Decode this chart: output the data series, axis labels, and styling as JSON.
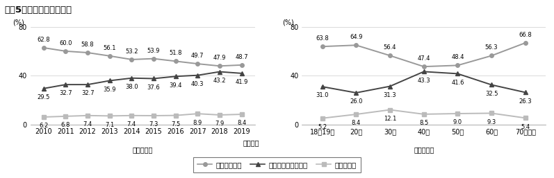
{
  "title": "図表5　新聞全般の満足度",
  "left": {
    "xlabel": "【時系列】",
    "xlabel2": "（年度）",
    "xticklabels": [
      "2010",
      "2011",
      "2012",
      "2013",
      "2014",
      "2015",
      "2016",
      "2017",
      "2018",
      "2019"
    ],
    "ylim": [
      0,
      80
    ],
    "yticks": [
      0,
      40,
      80
    ],
    "series": {
      "satisfied": [
        62.8,
        60.0,
        58.8,
        56.1,
        53.2,
        53.9,
        51.8,
        49.7,
        47.9,
        48.7
      ],
      "neutral": [
        29.5,
        32.7,
        32.7,
        35.9,
        38.0,
        37.6,
        39.4,
        40.3,
        43.2,
        41.9
      ],
      "dissatisfied": [
        6.2,
        6.8,
        7.4,
        7.1,
        7.4,
        7.3,
        7.5,
        8.9,
        7.9,
        8.4
      ]
    }
  },
  "right": {
    "xlabel": "【年代別】",
    "xticklabels": [
      "18〜19歳",
      "20代",
      "30代",
      "40代",
      "50代",
      "60代",
      "70代以上"
    ],
    "ylim": [
      0,
      80
    ],
    "yticks": [
      0,
      40,
      80
    ],
    "series": {
      "satisfied": [
        63.8,
        64.9,
        56.4,
        47.4,
        48.4,
        56.3,
        66.8
      ],
      "neutral": [
        31.0,
        26.0,
        31.3,
        43.3,
        41.6,
        32.5,
        26.3
      ],
      "dissatisfied": [
        5.2,
        8.4,
        12.1,
        8.5,
        9.0,
        9.3,
        5.4
      ]
    }
  },
  "color_satisfied": "#999999",
  "color_neutral": "#444444",
  "color_dissatisfied": "#bbbbbb",
  "linewidth": 1.4,
  "markersize": 4,
  "fontsize_data": 6.0,
  "fontsize_axis": 7.0,
  "fontsize_title": 9.5,
  "fontsize_legend": 7.5,
  "legend_labels": [
    "満足している",
    "どちらとも言えない",
    "不満である"
  ]
}
